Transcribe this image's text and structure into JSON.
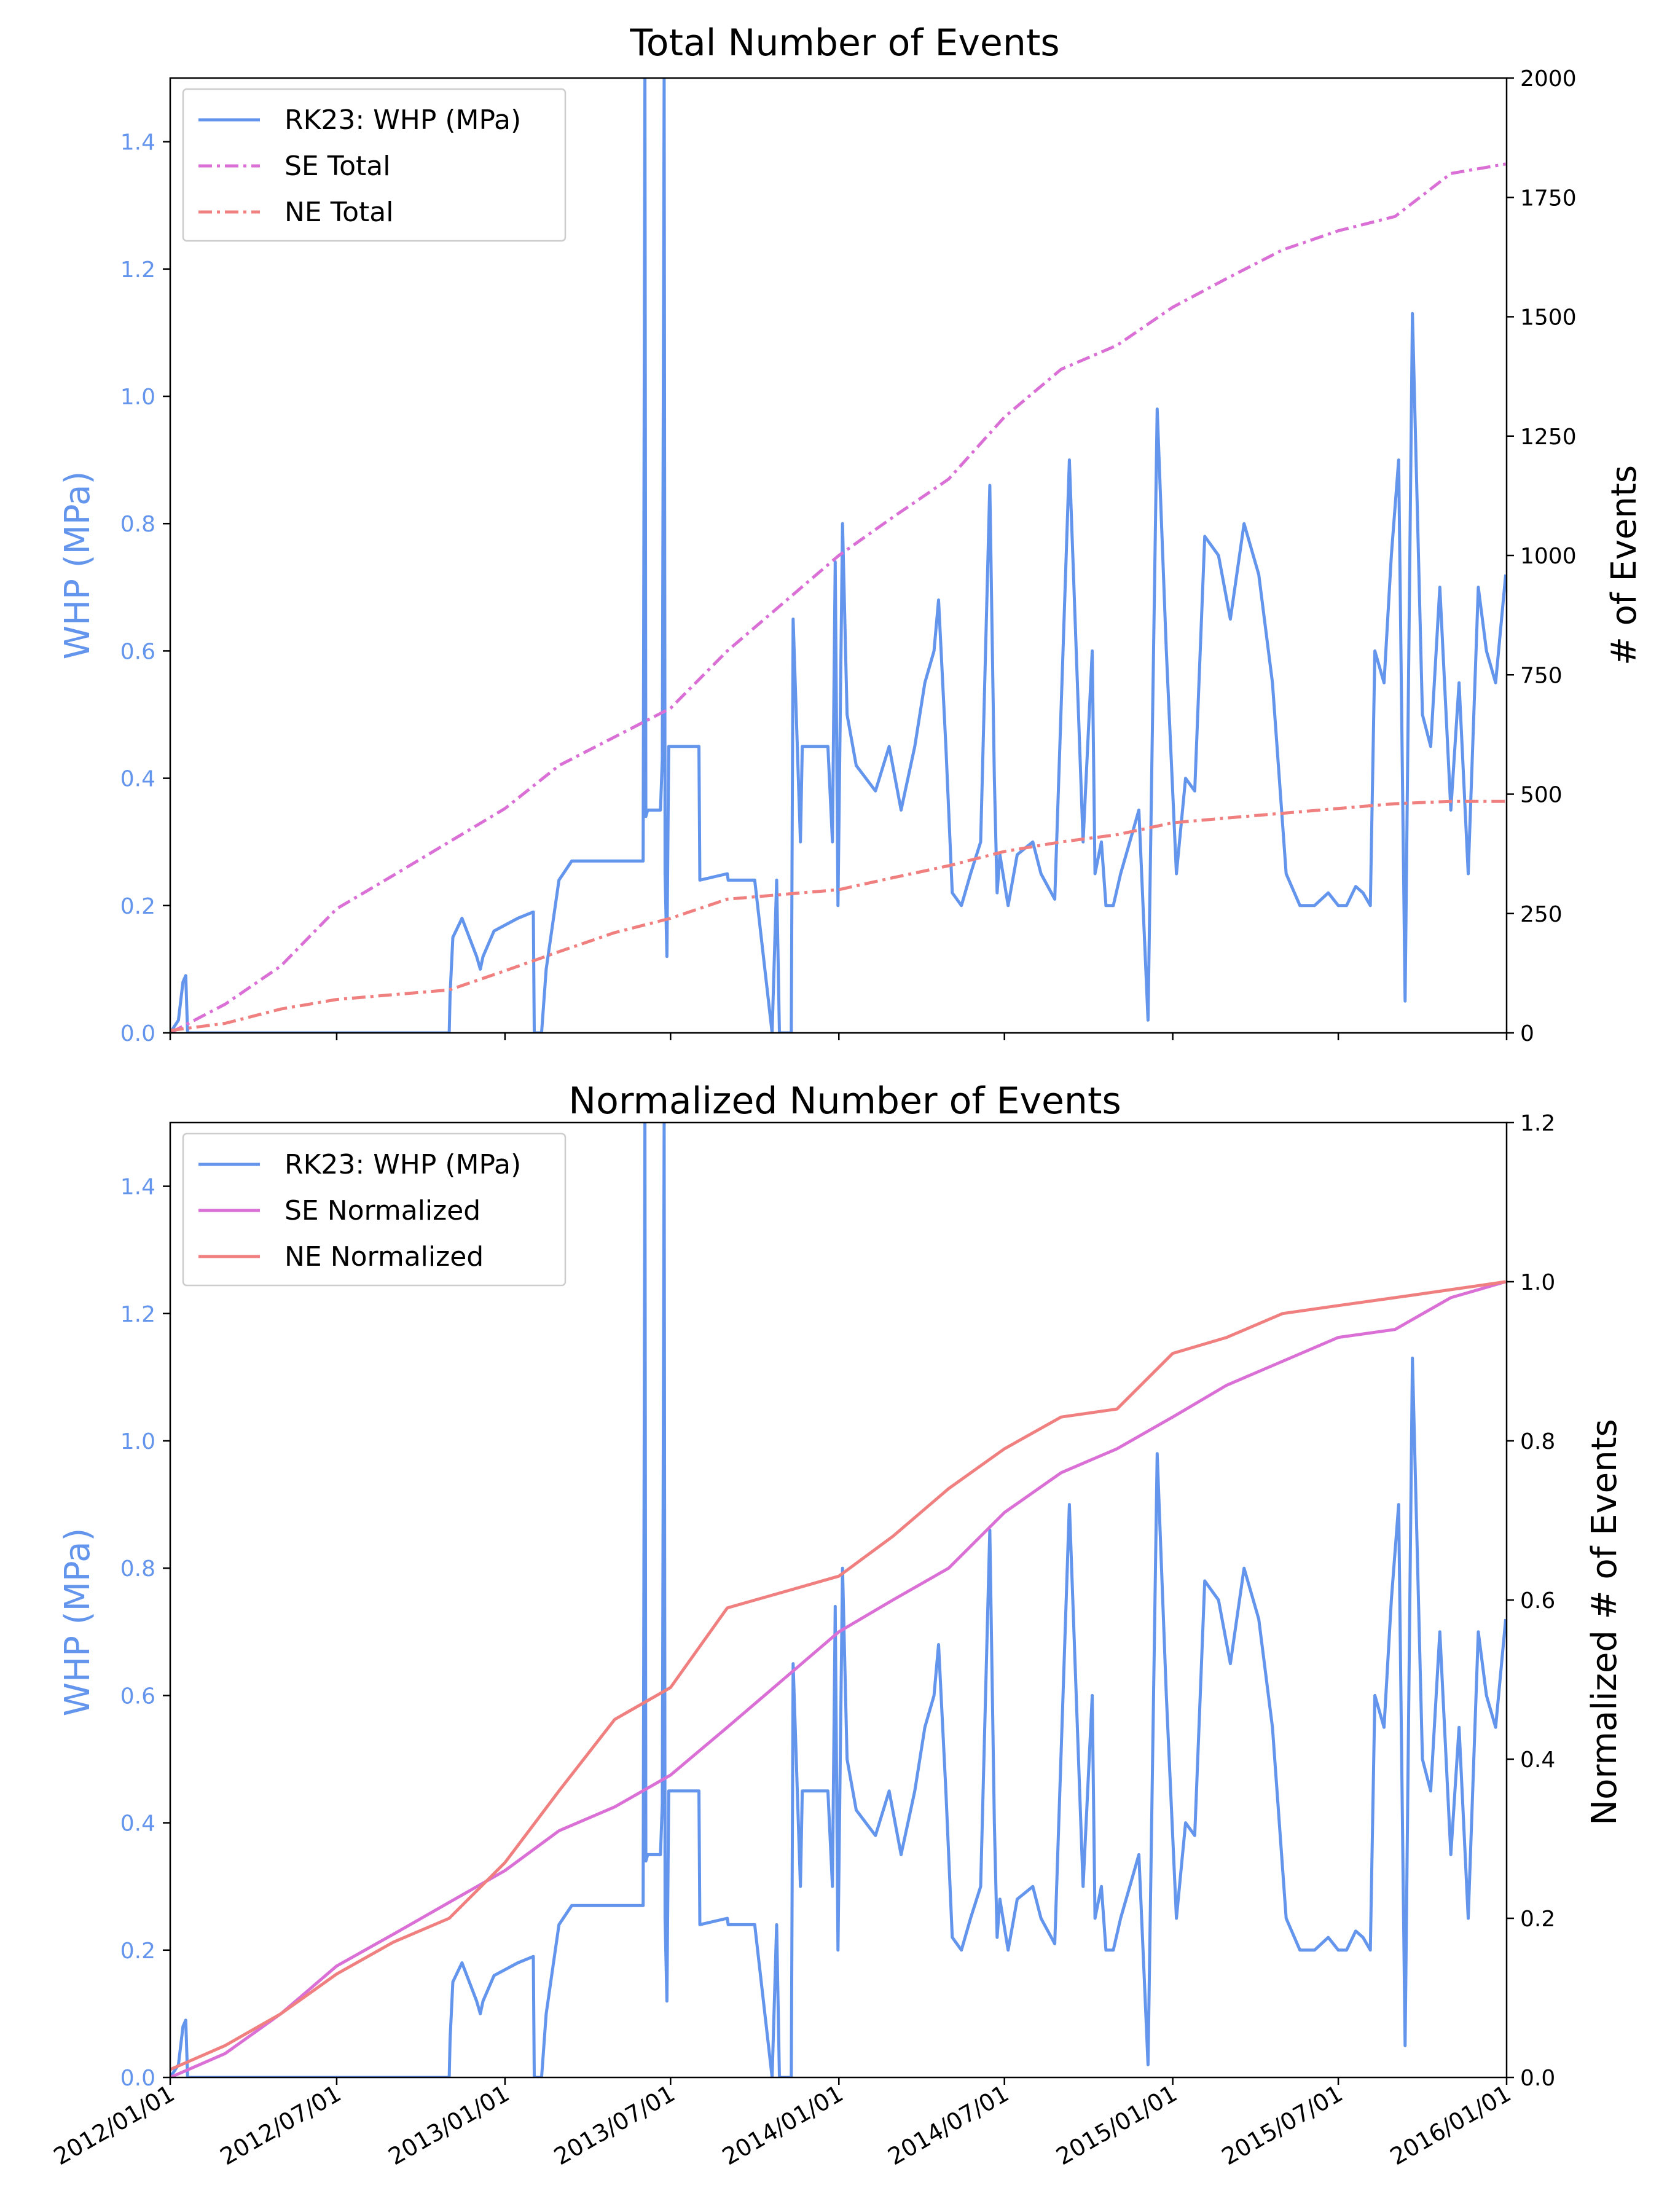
{
  "x_tick_labels": [
    "2012/01/01",
    "2012/07/01",
    "2013/01/01",
    "2013/07/01",
    "2014/01/01",
    "2014/07/01",
    "2015/01/01",
    "2015/07/01",
    "2016/01/01"
  ],
  "colors": {
    "whp": "#6495ED",
    "se": "#DA70D6",
    "ne": "#F08080",
    "axis": "#000000",
    "left_tick": "#6495ED"
  },
  "chart_data": [
    {
      "type": "line",
      "title": "Total Number of Events",
      "ylabel_left": "WHP (MPa)",
      "ylabel_right": "# of Events",
      "ylim_left": [
        0,
        1.5
      ],
      "ylim_right": [
        0,
        2000
      ],
      "yticks_left": [
        "0.0",
        "0.2",
        "0.4",
        "0.6",
        "0.8",
        "1.0",
        "1.2",
        "1.4"
      ],
      "yticks_right": [
        "0",
        "250",
        "500",
        "750",
        "1000",
        "1250",
        "1500",
        "1750",
        "2000"
      ],
      "legend_position": "top-left",
      "grid": false,
      "series": [
        {
          "name": "RK23: WHP (MPa)",
          "axis": "left",
          "style": "solid",
          "color": "#6495ED",
          "x": [
            "2012/01/01",
            "2012/01/10",
            "2012/01/15",
            "2012/01/18",
            "2012/01/20",
            "2012/11/01",
            "2012/11/02",
            "2012/11/05",
            "2012/11/15",
            "2012/12/01",
            "2012/12/05",
            "2012/12/08",
            "2012/12/20",
            "2013/01/15",
            "2013/02/01",
            "2013/02/02",
            "2013/02/10",
            "2013/02/15",
            "2013/03/01",
            "2013/03/15",
            "2013/04/01",
            "2013/06/01",
            "2013/06/03",
            "2013/06/04",
            "2013/06/06",
            "2013/06/20",
            "2013/06/22",
            "2013/06/24",
            "2013/06/25",
            "2013/06/27",
            "2013/06/29",
            "2013/07/01",
            "2013/07/04",
            "2013/07/07",
            "2013/08/01",
            "2013/08/02",
            "2013/09/01",
            "2013/09/02",
            "2013/09/10",
            "2013/09/20",
            "2013/10/01",
            "2013/10/20",
            "2013/10/25",
            "2013/10/28",
            "2013/11/10",
            "2013/11/12",
            "2013/11/20",
            "2013/11/22",
            "2013/12/01",
            "2013/12/10",
            "2013/12/20",
            "2013/12/25",
            "2013/12/28",
            "2013/12/31",
            "2014/01/05",
            "2014/01/10",
            "2014/01/20",
            "2014/02/10",
            "2014/02/25",
            "2014/03/10",
            "2014/03/25",
            "2014/04/05",
            "2014/04/15",
            "2014/04/20",
            "2014/04/28",
            "2014/05/05",
            "2014/05/15",
            "2014/05/25",
            "2014/06/05",
            "2014/06/15",
            "2014/06/20",
            "2014/06/23",
            "2014/06/26",
            "2014/07/05",
            "2014/07/15",
            "2014/08/01",
            "2014/08/10",
            "2014/08/25",
            "2014/09/10",
            "2014/09/25",
            "2014/10/05",
            "2014/10/08",
            "2014/10/15",
            "2014/10/20",
            "2014/10/28",
            "2014/11/05",
            "2014/11/15",
            "2014/11/25",
            "2014/12/05",
            "2014/12/15",
            "2014/12/25",
            "2015/01/05",
            "2015/01/15",
            "2015/01/25",
            "2015/02/05",
            "2015/02/20",
            "2015/03/05",
            "2015/03/20",
            "2015/04/05",
            "2015/04/20",
            "2015/05/05",
            "2015/05/20",
            "2015/06/05",
            "2015/06/20",
            "2015/07/01",
            "2015/07/10",
            "2015/07/20",
            "2015/07/28",
            "2015/08/05",
            "2015/08/10",
            "2015/08/20",
            "2015/08/28",
            "2015/09/05",
            "2015/09/12",
            "2015/09/20",
            "2015/10/01",
            "2015/10/10",
            "2015/10/20",
            "2015/11/01",
            "2015/11/10",
            "2015/11/20",
            "2015/12/01",
            "2015/12/10",
            "2015/12/20",
            "2015/12/31"
          ],
          "y": [
            0.0,
            0.02,
            0.08,
            0.09,
            0.0,
            0.0,
            0.06,
            0.15,
            0.18,
            0.12,
            0.1,
            0.12,
            0.16,
            0.18,
            0.19,
            0.0,
            0.0,
            0.1,
            0.24,
            0.27,
            0.27,
            0.27,
            1.5,
            0.34,
            0.35,
            0.35,
            0.43,
            1.5,
            0.25,
            0.12,
            0.45,
            0.45,
            0.45,
            0.45,
            0.45,
            0.24,
            0.25,
            0.24,
            0.24,
            0.24,
            0.24,
            0.0,
            0.24,
            0.0,
            0.0,
            0.65,
            0.3,
            0.45,
            0.45,
            0.45,
            0.45,
            0.3,
            0.74,
            0.2,
            0.8,
            0.5,
            0.42,
            0.38,
            0.45,
            0.35,
            0.45,
            0.55,
            0.6,
            0.68,
            0.45,
            0.22,
            0.2,
            0.25,
            0.3,
            0.86,
            0.4,
            0.22,
            0.28,
            0.2,
            0.28,
            0.3,
            0.25,
            0.21,
            0.9,
            0.3,
            0.6,
            0.25,
            0.3,
            0.2,
            0.2,
            0.25,
            0.3,
            0.35,
            0.02,
            0.98,
            0.6,
            0.25,
            0.4,
            0.38,
            0.78,
            0.75,
            0.65,
            0.8,
            0.72,
            0.55,
            0.25,
            0.2,
            0.2,
            0.22,
            0.2,
            0.2,
            0.23,
            0.22,
            0.2,
            0.6,
            0.55,
            0.75,
            0.9,
            0.05,
            1.13,
            0.5,
            0.45,
            0.7,
            0.35,
            0.55,
            0.25,
            0.7,
            0.6,
            0.55,
            0.72
          ]
        },
        {
          "name": "SE Total",
          "axis": "right",
          "style": "dashdot",
          "color": "#DA70D6",
          "x": [
            "2012/01/01",
            "2012/03/01",
            "2012/05/01",
            "2012/07/01",
            "2012/09/01",
            "2012/11/01",
            "2013/01/01",
            "2013/03/01",
            "2013/05/01",
            "2013/07/01",
            "2013/09/01",
            "2013/11/01",
            "2014/01/01",
            "2014/03/01",
            "2014/05/01",
            "2014/07/01",
            "2014/09/01",
            "2014/11/01",
            "2015/01/01",
            "2015/03/01",
            "2015/05/01",
            "2015/07/01",
            "2015/09/01",
            "2015/11/01",
            "2015/12/31"
          ],
          "y": [
            0,
            60,
            140,
            260,
            330,
            400,
            470,
            560,
            620,
            680,
            800,
            900,
            1000,
            1080,
            1160,
            1290,
            1390,
            1440,
            1520,
            1580,
            1640,
            1680,
            1710,
            1800,
            1820
          ]
        },
        {
          "name": "NE Total",
          "axis": "right",
          "style": "dashdot",
          "color": "#F08080",
          "x": [
            "2012/01/01",
            "2012/03/01",
            "2012/05/01",
            "2012/07/01",
            "2012/09/01",
            "2012/11/01",
            "2013/01/01",
            "2013/03/01",
            "2013/05/01",
            "2013/07/01",
            "2013/09/01",
            "2013/11/01",
            "2014/01/01",
            "2014/03/01",
            "2014/05/01",
            "2014/07/01",
            "2014/09/01",
            "2014/11/01",
            "2015/01/01",
            "2015/03/01",
            "2015/05/01",
            "2015/07/01",
            "2015/09/01",
            "2015/11/01",
            "2015/12/31"
          ],
          "y": [
            5,
            20,
            50,
            70,
            80,
            90,
            130,
            170,
            210,
            240,
            280,
            290,
            300,
            325,
            350,
            380,
            400,
            415,
            440,
            450,
            460,
            470,
            480,
            485,
            485
          ]
        }
      ]
    },
    {
      "type": "line",
      "title": "Normalized Number of Events",
      "ylabel_left": "WHP (MPa)",
      "ylabel_right": "Normalized # of Events",
      "ylim_left": [
        0,
        1.5
      ],
      "ylim_right": [
        0,
        1.2
      ],
      "yticks_left": [
        "0.0",
        "0.2",
        "0.4",
        "0.6",
        "0.8",
        "1.0",
        "1.2",
        "1.4"
      ],
      "yticks_right": [
        "0.0",
        "0.2",
        "0.4",
        "0.6",
        "0.8",
        "1.0",
        "1.2"
      ],
      "legend_position": "top-left",
      "grid": false,
      "series": [
        {
          "name": "RK23: WHP (MPa)",
          "axis": "left",
          "style": "solid",
          "color": "#6495ED",
          "same_as": "chart_data.0.series.0"
        },
        {
          "name": "SE Normalized",
          "axis": "right",
          "style": "solid",
          "color": "#DA70D6",
          "x": [
            "2012/01/01",
            "2012/03/01",
            "2012/05/01",
            "2012/07/01",
            "2012/09/01",
            "2012/11/01",
            "2013/01/01",
            "2013/03/01",
            "2013/05/01",
            "2013/07/01",
            "2013/09/01",
            "2013/11/01",
            "2014/01/01",
            "2014/03/01",
            "2014/05/01",
            "2014/07/01",
            "2014/09/01",
            "2014/11/01",
            "2015/01/01",
            "2015/03/01",
            "2015/05/01",
            "2015/07/01",
            "2015/09/01",
            "2015/11/01",
            "2015/12/31"
          ],
          "y": [
            0.0,
            0.03,
            0.08,
            0.14,
            0.18,
            0.22,
            0.26,
            0.31,
            0.34,
            0.38,
            0.44,
            0.5,
            0.56,
            0.6,
            0.64,
            0.71,
            0.76,
            0.79,
            0.83,
            0.87,
            0.9,
            0.93,
            0.94,
            0.98,
            1.0
          ]
        },
        {
          "name": "NE Normalized",
          "axis": "right",
          "style": "solid",
          "color": "#F08080",
          "x": [
            "2012/01/01",
            "2012/03/01",
            "2012/05/01",
            "2012/07/01",
            "2012/09/01",
            "2012/11/01",
            "2013/01/01",
            "2013/03/01",
            "2013/05/01",
            "2013/07/01",
            "2013/09/01",
            "2013/11/01",
            "2014/01/01",
            "2014/03/01",
            "2014/05/01",
            "2014/07/01",
            "2014/09/01",
            "2014/11/01",
            "2015/01/01",
            "2015/03/01",
            "2015/05/01",
            "2015/07/01",
            "2015/09/01",
            "2015/11/01",
            "2015/12/31"
          ],
          "y": [
            0.01,
            0.04,
            0.08,
            0.13,
            0.17,
            0.2,
            0.27,
            0.36,
            0.45,
            0.49,
            0.59,
            0.61,
            0.63,
            0.68,
            0.74,
            0.79,
            0.83,
            0.84,
            0.91,
            0.93,
            0.96,
            0.97,
            0.98,
            0.99,
            1.0
          ]
        }
      ]
    }
  ]
}
